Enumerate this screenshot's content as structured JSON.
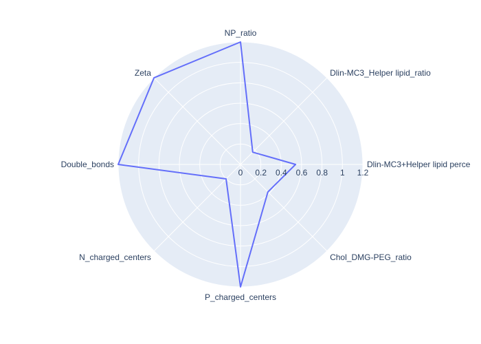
{
  "chart_data": {
    "type": "radar",
    "theta": [
      "NP_ratio",
      "Dlin-MC3_Helper lipid_ratio",
      "Dlin-MC3+Helper lipid perce",
      "Chol_DMG-PEG_ratio",
      "P_charged_centers",
      "N_charged_centers",
      "Double_bonds",
      "Zeta"
    ],
    "series": [
      {
        "values": [
          1.2,
          0.17,
          0.54,
          0.38,
          1.2,
          0.2,
          1.2,
          1.2
        ],
        "color": "#636efa"
      }
    ],
    "radial_range": [
      0,
      1.2
    ],
    "radial_ticks": [
      "0",
      "0.2",
      "0.4",
      "0.6",
      "0.8",
      "1",
      "1.2"
    ],
    "radial_tick_values": [
      0,
      0.2,
      0.4,
      0.6,
      0.8,
      1.0,
      1.2
    ],
    "grid": true,
    "background_color": "#e5ecf6",
    "grid_color": "#ffffff"
  }
}
